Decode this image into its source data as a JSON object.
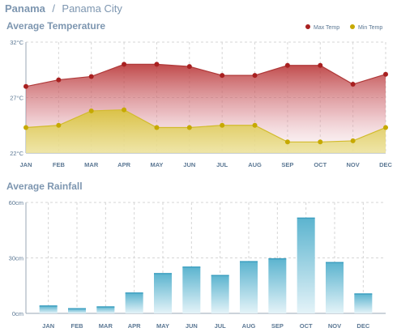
{
  "header": {
    "country": "Panama",
    "separator": "/",
    "city": "Panama City"
  },
  "colors": {
    "max_temp": "#a82020",
    "min_temp": "#c6a900",
    "rain": "#5fb6d0"
  },
  "chart_data": [
    {
      "type": "area",
      "title": "Average Temperature",
      "categories": [
        "JAN",
        "FEB",
        "MAR",
        "APR",
        "MAY",
        "JUN",
        "JUL",
        "AUG",
        "SEP",
        "OCT",
        "NOV",
        "DEC"
      ],
      "y_ticks": [
        "32°C",
        "27°C",
        "22°C"
      ],
      "ylim": [
        22,
        32
      ],
      "legend_position": "top-right",
      "grid": true,
      "series": [
        {
          "name": "Max Temp",
          "values": [
            28,
            28.6,
            28.9,
            30,
            30,
            29.8,
            29,
            29,
            29.9,
            29.9,
            28.2,
            29.1
          ]
        },
        {
          "name": "Min Temp",
          "values": [
            24.3,
            24.5,
            25.8,
            25.9,
            24.3,
            24.3,
            24.5,
            24.5,
            23,
            23,
            23.1,
            24.3
          ]
        }
      ]
    },
    {
      "type": "bar",
      "title": "Average Rainfall",
      "categories": [
        "JAN",
        "FEB",
        "MAR",
        "APR",
        "MAY",
        "JUN",
        "JUL",
        "AUG",
        "SEP",
        "OCT",
        "NOV",
        "DEC"
      ],
      "y_ticks": [
        "60cm",
        "30cm",
        "0cm"
      ],
      "ylim": [
        0,
        60
      ],
      "grid": true,
      "values": [
        4,
        2.5,
        3.5,
        11,
        21.5,
        25,
        20.5,
        28,
        29.5,
        51.5,
        27.5,
        10.5
      ]
    }
  ]
}
